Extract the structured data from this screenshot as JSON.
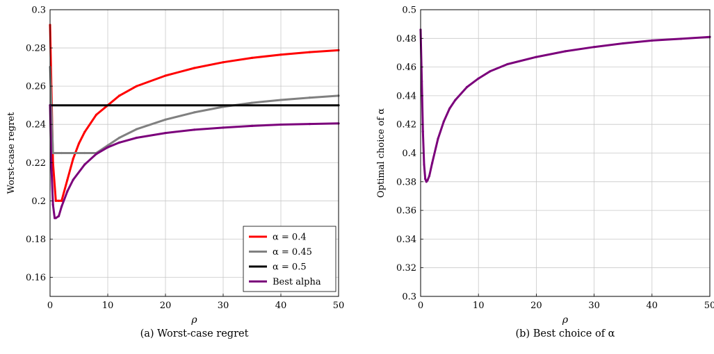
{
  "chart_data": [
    {
      "type": "line",
      "caption": "(a)  Worst-case regret",
      "xlabel": "ρ",
      "ylabel": "Worst-case regret",
      "xlim": [
        0,
        50
      ],
      "ylim": [
        0.15,
        0.3
      ],
      "xticks": [
        "0",
        "10",
        "20",
        "30",
        "40",
        "50"
      ],
      "yticks": [
        "0.16",
        "0.18",
        "0.2",
        "0.22",
        "0.24",
        "0.26",
        "0.28",
        "0.3"
      ],
      "grid": true,
      "legend_position": "bottom-right",
      "series": [
        {
          "name": "α = 0.4",
          "color": "#ff0000",
          "x": [
            0,
            0.5,
            1,
            1.5,
            2,
            3,
            4,
            5,
            6,
            8,
            10,
            12,
            15,
            20,
            25,
            30,
            35,
            40,
            45,
            50
          ],
          "y": [
            0.292,
            0.22,
            0.2,
            0.2,
            0.2,
            0.211,
            0.222,
            0.23,
            0.236,
            0.245,
            0.25,
            0.255,
            0.26,
            0.2655,
            0.2695,
            0.2725,
            0.2748,
            0.2765,
            0.2778,
            0.2788
          ]
        },
        {
          "name": "α = 0.45",
          "color": "#808080",
          "x": [
            0,
            0.5,
            1,
            2,
            4,
            6,
            8,
            10,
            12,
            15,
            20,
            25,
            30,
            35,
            40,
            45,
            50
          ],
          "y": [
            0.27,
            0.225,
            0.225,
            0.225,
            0.225,
            0.225,
            0.225,
            0.229,
            0.233,
            0.2375,
            0.2425,
            0.2463,
            0.2492,
            0.2513,
            0.2528,
            0.254,
            0.255
          ]
        },
        {
          "name": "α = 0.5",
          "color": "#000000",
          "x": [
            0,
            50
          ],
          "y": [
            0.25,
            0.25
          ]
        },
        {
          "name": "Best alpha",
          "color": "#7b007b",
          "x": [
            0,
            0.2,
            0.5,
            0.8,
            1,
            1.5,
            2,
            3,
            4,
            6,
            8,
            10,
            12,
            15,
            20,
            25,
            30,
            35,
            40,
            45,
            50
          ],
          "y": [
            0.25,
            0.22,
            0.198,
            0.191,
            0.191,
            0.192,
            0.197,
            0.205,
            0.211,
            0.219,
            0.2245,
            0.228,
            0.2305,
            0.233,
            0.2355,
            0.2372,
            0.2383,
            0.2392,
            0.2399,
            0.2402,
            0.2405
          ]
        }
      ]
    },
    {
      "type": "line",
      "caption": "(b)  Best choice of α",
      "xlabel": "ρ",
      "ylabel": "Optimal choice of α",
      "xlim": [
        0,
        50
      ],
      "ylim": [
        0.3,
        0.5
      ],
      "xticks": [
        "0",
        "10",
        "20",
        "30",
        "40",
        "50"
      ],
      "yticks": [
        "0.3",
        "0.32",
        "0.34",
        "0.36",
        "0.38",
        "0.4",
        "0.42",
        "0.44",
        "0.46",
        "0.48",
        "0.5"
      ],
      "grid": true,
      "series": [
        {
          "color": "#7b007b",
          "x": [
            0,
            0.2,
            0.4,
            0.6,
            0.8,
            1,
            1.2,
            1.5,
            2,
            3,
            4,
            5,
            6,
            8,
            10,
            12,
            15,
            20,
            25,
            30,
            35,
            40,
            45,
            50
          ],
          "y": [
            0.486,
            0.45,
            0.415,
            0.392,
            0.382,
            0.38,
            0.381,
            0.384,
            0.393,
            0.41,
            0.422,
            0.431,
            0.437,
            0.446,
            0.452,
            0.457,
            0.462,
            0.467,
            0.471,
            0.474,
            0.4765,
            0.4785,
            0.4797,
            0.481
          ]
        }
      ]
    }
  ]
}
